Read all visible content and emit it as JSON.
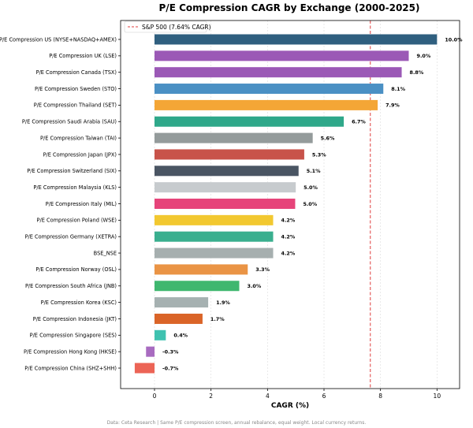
{
  "chart_data": {
    "type": "bar",
    "orientation": "horizontal",
    "title": "P/E Compression CAGR by Exchange (2000-2025)",
    "xlabel": "CAGR (%)",
    "ylabel": "",
    "xlim": [
      -1.2,
      10.8
    ],
    "xticks": [
      0,
      2,
      4,
      6,
      8,
      10
    ],
    "grid": "vertical dashed",
    "categories": [
      "P/E Compression US (NYSE+NASDAQ+AMEX)",
      "P/E Compression UK (LSE)",
      "P/E Compression Canada (TSX)",
      "P/E Compression Sweden (STO)",
      "P/E Compression Thailand (SET)",
      "P/E Compression Saudi Arabia (SAU)",
      "P/E Compression Taiwan (TAI)",
      "P/E Compression Japan (JPX)",
      "P/E Compression Switzerland (SIX)",
      "P/E Compression Malaysia (KLS)",
      "P/E Compression Italy (MIL)",
      "P/E Compression Poland (WSE)",
      "P/E Compression Germany (XETRA)",
      "BSE_NSE",
      "P/E Compression Norway (OSL)",
      "P/E Compression South Africa (JNB)",
      "P/E Compression Korea (KSC)",
      "P/E Compression Indonesia (JKT)",
      "P/E Compression Singapore (SES)",
      "P/E Compression Hong Kong (HKSE)",
      "P/E Compression China (SHZ+SHH)"
    ],
    "values": [
      10.0,
      9.0,
      8.75,
      8.1,
      7.9,
      6.7,
      5.6,
      5.3,
      5.1,
      5.0,
      4.98,
      4.2,
      4.2,
      4.2,
      3.3,
      3.0,
      1.9,
      1.7,
      0.4,
      -0.3,
      -0.7
    ],
    "value_labels": [
      "10.0%",
      "9.0%",
      "8.8%",
      "8.1%",
      "7.9%",
      "6.7%",
      "5.6%",
      "5.3%",
      "5.1%",
      "5.0%",
      "5.0%",
      "4.2%",
      "4.2%",
      "4.2%",
      "3.3%",
      "3.0%",
      "1.9%",
      "1.7%",
      "0.4%",
      "-0.3%",
      "-0.7%"
    ],
    "colors": [
      "#2f5f7f",
      "#9b59b6",
      "#9b59b6",
      "#4a90c4",
      "#f4a636",
      "#2fa88a",
      "#949b9b",
      "#c8534a",
      "#4a5563",
      "#c7cbce",
      "#e6447a",
      "#f2c830",
      "#3aaf8f",
      "#a6afaf",
      "#ea9445",
      "#3fb76f",
      "#a6b1b1",
      "#da6428",
      "#3fc2b0",
      "#a86bc0",
      "#ec6456"
    ],
    "reference_line": {
      "label": "S&P 500 (7.64% CAGR)",
      "value": 7.64,
      "color": "#e03c3c",
      "style": "dashed"
    },
    "legend_position": "top-left",
    "footnote": "Data: Ceta Research | Same P/E compression screen, annual rebalance, equal weight. Local currency returns."
  }
}
